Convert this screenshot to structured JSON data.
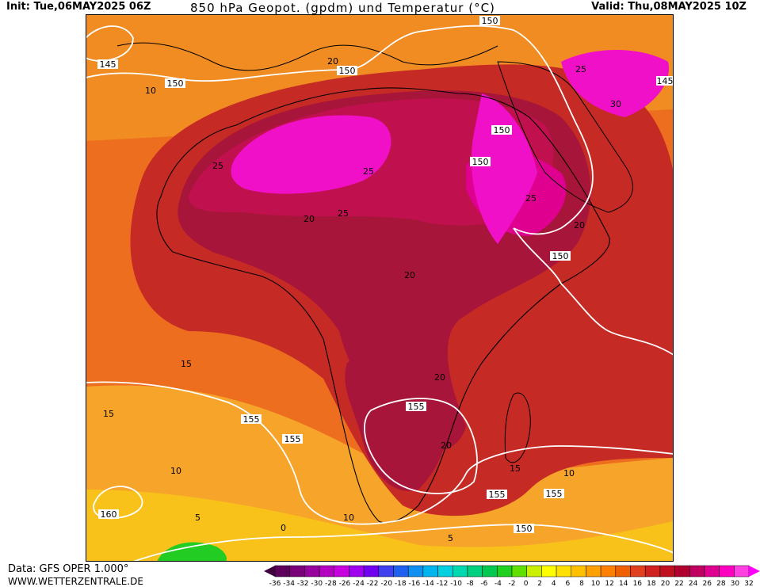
{
  "header": {
    "init": "Init: Tue,06MAY2025 06Z",
    "title": "850 hPa Geopot. (gpdm) und Temperatur (°C)",
    "valid": "Valid: Thu,08MAY2025 10Z"
  },
  "footer": {
    "data": "Data: GFS OPER 1.000°",
    "site": "WWW.WETTERZENTRALE.DE"
  },
  "colors": {
    "cold_ocean": "#f7a42a",
    "mid_ocean": "#ec6e1e",
    "land_warm": "#c62a24",
    "land_hot": "#a8153a",
    "sahara": "#c0104e",
    "extreme": "#f010c8",
    "southern_cool": "#f9c21a",
    "cold_green": "#22cc22",
    "contour": "#ffffff",
    "coast": "#000000"
  },
  "map": {
    "isohypse_labels": [
      "150",
      "150",
      "150",
      "150",
      "150",
      "150",
      "145",
      "145",
      "155",
      "155",
      "155",
      "155",
      "155",
      "160",
      "150"
    ],
    "isotherm_labels": [
      "10",
      "20",
      "25",
      "25",
      "20",
      "25",
      "20",
      "25",
      "20",
      "20",
      "15",
      "15",
      "20",
      "10",
      "15",
      "10",
      "10",
      "5",
      "5",
      "0",
      "25",
      "30"
    ]
  },
  "legend": {
    "arrow_colors": [
      "#400040",
      "#ff00ff"
    ],
    "colors": [
      "#5c005c",
      "#7a007a",
      "#96009c",
      "#b400c0",
      "#c800e0",
      "#a000f0",
      "#7000f0",
      "#4040f0",
      "#2060f0",
      "#1090f0",
      "#00b4f0",
      "#00d0e0",
      "#00d8b0",
      "#00d080",
      "#00c850",
      "#20d020",
      "#60e000",
      "#c8f000",
      "#ffff00",
      "#ffe000",
      "#ffc000",
      "#ffa000",
      "#ff8000",
      "#f06000",
      "#e04020",
      "#d02020",
      "#c01020",
      "#b00030",
      "#c00060",
      "#e00090",
      "#ff00c0",
      "#ff40e0"
    ],
    "ticks": [
      "-36",
      "-34",
      "-32",
      "-30",
      "-28",
      "-26",
      "-24",
      "-22",
      "-20",
      "-18",
      "-16",
      "-14",
      "-12",
      "-10",
      "-8",
      "-6",
      "-4",
      "-2",
      "0",
      "2",
      "4",
      "6",
      "8",
      "10",
      "12",
      "14",
      "16",
      "18",
      "20",
      "22",
      "24",
      "26",
      "28",
      "30",
      "32"
    ]
  }
}
